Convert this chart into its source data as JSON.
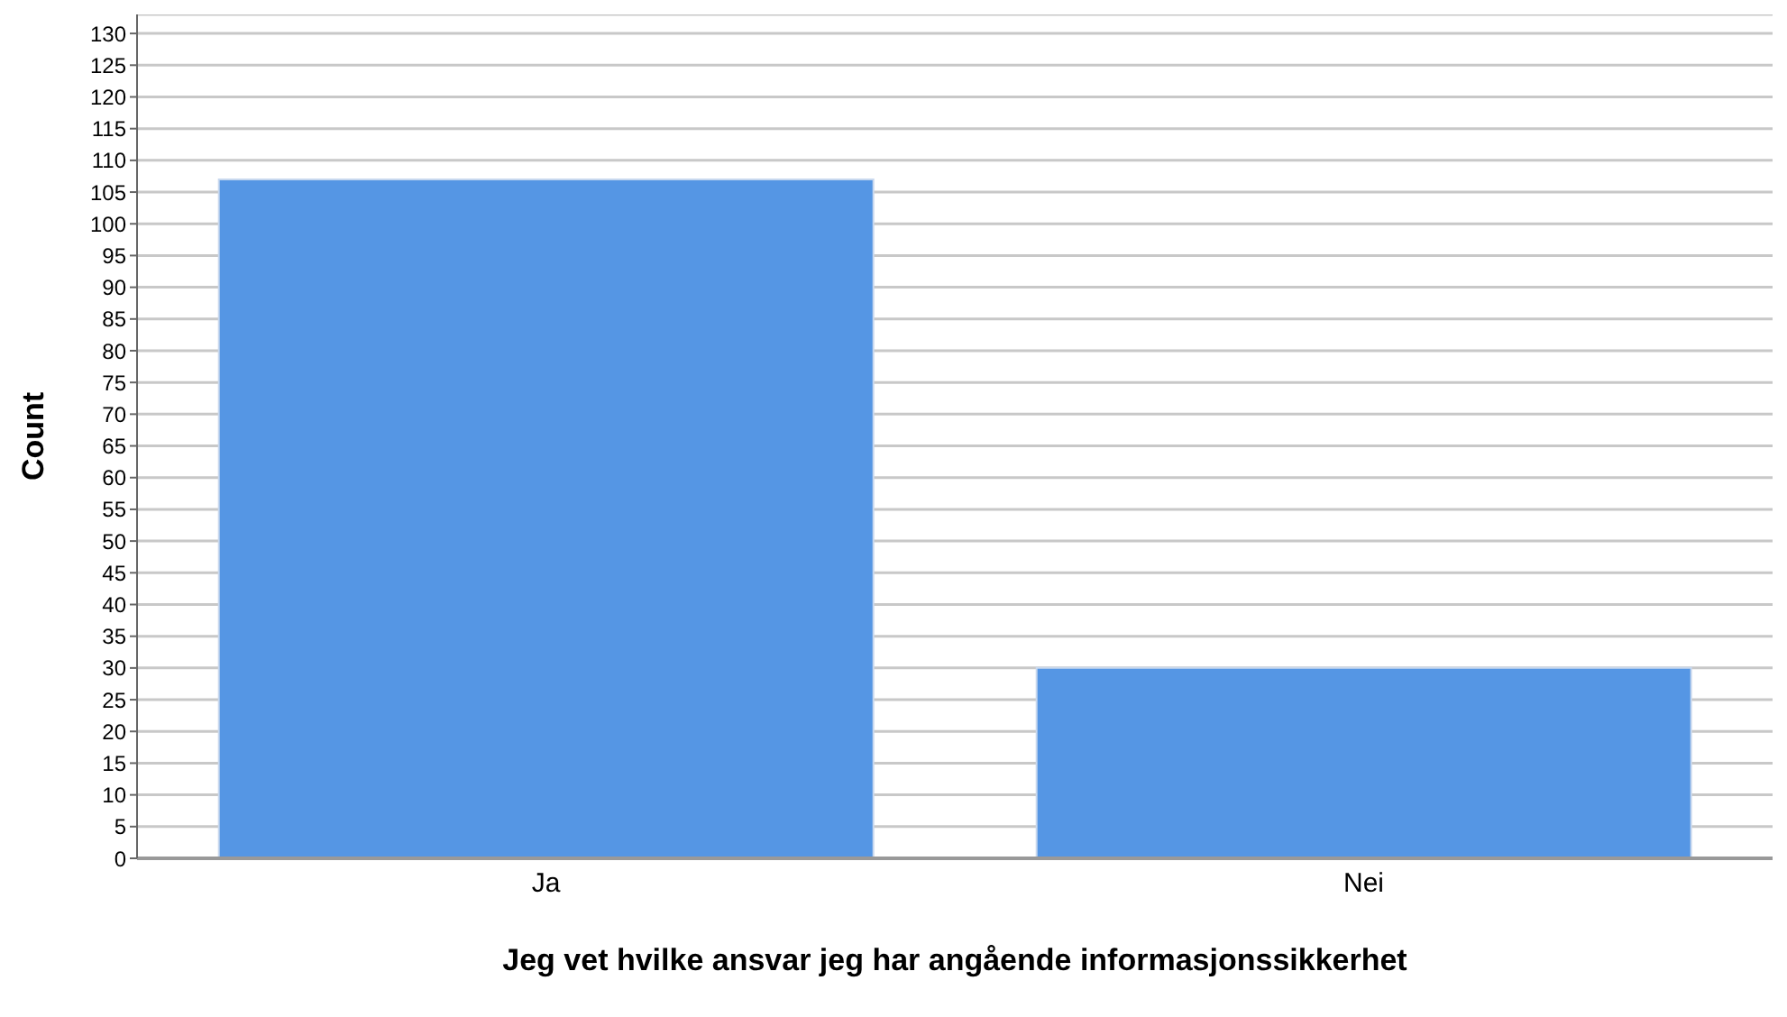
{
  "chart_data": {
    "type": "bar",
    "xlabel": "Jeg vet hvilke ansvar jeg har angående informasjonssikkerhet",
    "ylabel": "Count",
    "categories": [
      "Ja",
      "Nei"
    ],
    "values": [
      107,
      30
    ],
    "color": "#5596e4",
    "ylim": [
      0,
      133
    ],
    "yticks": [
      0,
      5,
      10,
      15,
      20,
      25,
      30,
      35,
      40,
      45,
      50,
      55,
      60,
      65,
      70,
      75,
      80,
      85,
      90,
      95,
      100,
      105,
      110,
      115,
      120,
      125,
      130
    ],
    "grid": "y"
  }
}
